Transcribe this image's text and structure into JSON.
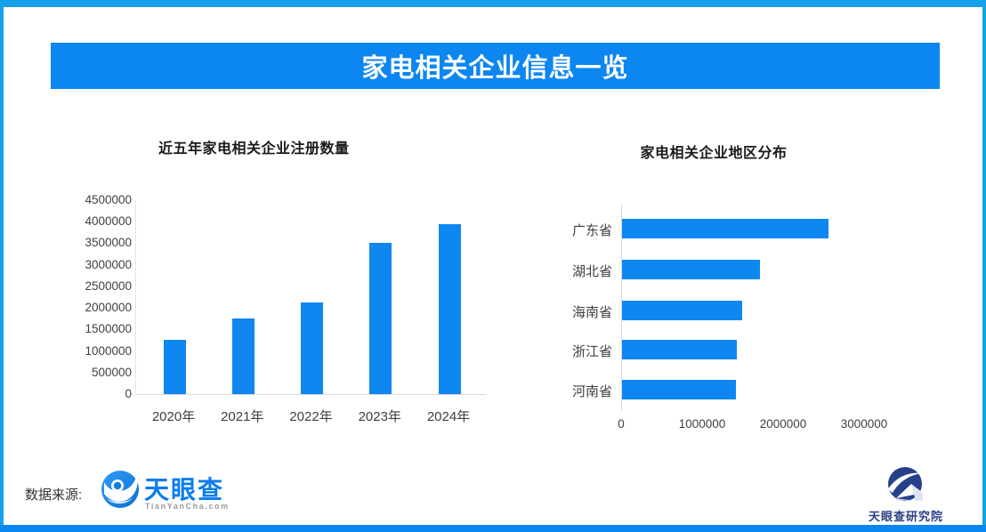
{
  "banner": {
    "title": "家电相关企业信息一览"
  },
  "colors": {
    "primary_blue": "#0c86f0",
    "border_blue": "#17a0ea",
    "bar_blue": "#0e87f1",
    "navy": "#2b3f87",
    "axis_line": "#d9d9d9",
    "tick_text": "#404040"
  },
  "chart_data": [
    {
      "type": "bar",
      "orientation": "vertical",
      "title": "近五年家电相关企业注册数量",
      "categories": [
        "2020年",
        "2021年",
        "2022年",
        "2023年",
        "2024年"
      ],
      "values": [
        1270000,
        1760000,
        2130000,
        3510000,
        3940000
      ],
      "xlabel": "",
      "ylabel": "",
      "ylim": [
        0,
        4500000
      ],
      "yticks": [
        0,
        500000,
        1000000,
        1500000,
        2000000,
        2500000,
        3000000,
        3500000,
        4000000,
        4500000
      ],
      "grid": false,
      "legend": null,
      "bar_color": "#0e87f1"
    },
    {
      "type": "bar",
      "orientation": "horizontal",
      "title": "家电相关企业地区分布",
      "categories": [
        "广东省",
        "湖北省",
        "海南省",
        "浙江省",
        "河南省"
      ],
      "values": [
        2550000,
        1700000,
        1480000,
        1420000,
        1410000
      ],
      "xlabel": "",
      "ylabel": "",
      "xlim": [
        0,
        3400000
      ],
      "xticks": [
        0,
        1000000,
        2000000,
        3000000
      ],
      "grid": false,
      "legend": null,
      "bar_color": "#0e87f1"
    }
  ],
  "footer": {
    "source_label": "数据来源:",
    "tianyancha_logo": {
      "name": "天眼查",
      "domain": "TianYanCha.com",
      "icon": "tianyancha-eye-icon"
    },
    "institute_logo": {
      "name": "天眼查研究院",
      "icon": "tianyancha-institute-icon"
    }
  }
}
